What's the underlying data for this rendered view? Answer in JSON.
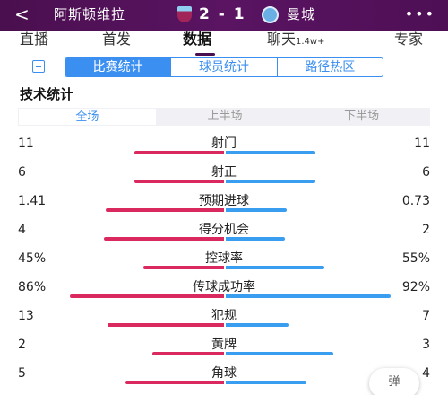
{
  "header": {
    "back_icon": "chevron-left-icon",
    "home_team": "阿斯顿维拉",
    "score": "2 - 1",
    "away_team": "曼城",
    "more_icon": "ellipsis-icon"
  },
  "nav": {
    "tabs": [
      {
        "label": "直播"
      },
      {
        "label": "首发"
      },
      {
        "label": "数据"
      },
      {
        "label": "聊天",
        "badge": "1.4w+"
      },
      {
        "label": "专家"
      }
    ],
    "active": "数据"
  },
  "subtabs": {
    "icon": "clipboard-icon",
    "items": [
      "比赛统计",
      "球员统计",
      "路径热区"
    ],
    "active": "比赛统计"
  },
  "section_title": "技术统计",
  "periods": {
    "items": [
      "全场",
      "上半场",
      "下半场"
    ],
    "active": "全场"
  },
  "stats": [
    {
      "label": "射门",
      "home": "11",
      "away": "11",
      "home_share": 0.5,
      "away_share": 0.5
    },
    {
      "label": "射正",
      "home": "6",
      "away": "6",
      "home_share": 0.5,
      "away_share": 0.5
    },
    {
      "label": "预期进球",
      "home": "1.41",
      "away": "0.73",
      "home_share": 0.66,
      "away_share": 0.34
    },
    {
      "label": "得分机会",
      "home": "4",
      "away": "2",
      "home_share": 0.67,
      "away_share": 0.33
    },
    {
      "label": "控球率",
      "home": "45%",
      "away": "55%",
      "home_share": 0.45,
      "away_share": 0.55
    },
    {
      "label": "传球成功率",
      "home": "86%",
      "away": "92%",
      "home_share": 0.86,
      "away_share": 0.92
    },
    {
      "label": "犯规",
      "home": "13",
      "away": "7",
      "home_share": 0.65,
      "away_share": 0.35
    },
    {
      "label": "黄牌",
      "home": "2",
      "away": "3",
      "home_share": 0.4,
      "away_share": 0.6
    },
    {
      "label": "角球",
      "home": "5",
      "away": "4",
      "home_share": 0.55,
      "away_share": 0.45
    }
  ],
  "float_button": "弹",
  "colors": {
    "header_bg": "#4a0f4f",
    "accent_blue": "#3b8ff0",
    "home_bar": "#d9295f",
    "away_bar": "#3a9ef0"
  }
}
